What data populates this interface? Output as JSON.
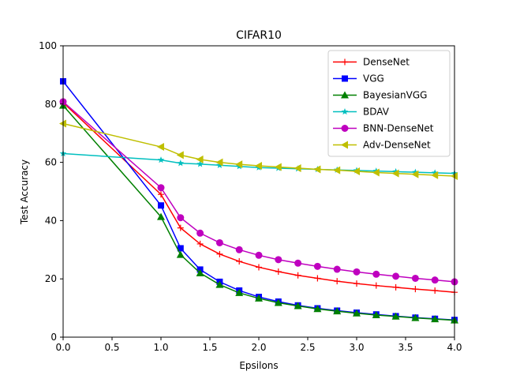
{
  "chart_data": {
    "type": "line",
    "title": "CIFAR10",
    "xlabel": "Epsilons",
    "ylabel": "Test Accuracy",
    "xlim": [
      0,
      4
    ],
    "ylim": [
      0,
      100
    ],
    "xticks": [
      "0.0",
      "0.5",
      "1.0",
      "1.5",
      "2.0",
      "2.5",
      "3.0",
      "3.5",
      "4.0"
    ],
    "yticks": [
      "0",
      "20",
      "40",
      "60",
      "80",
      "100"
    ],
    "grid": false,
    "legend_position": "top-right",
    "x": [
      0,
      1.0,
      1.2,
      1.4,
      1.6,
      1.8,
      2.0,
      2.2,
      2.4,
      2.6,
      2.8,
      3.0,
      3.2,
      3.4,
      3.6,
      3.8,
      4.0
    ],
    "series": [
      {
        "name": "DenseNet",
        "color": "#ff0000",
        "marker": "plus",
        "values": [
          80.5,
          49,
          37.5,
          32,
          28.5,
          26,
          24,
          22.5,
          21.2,
          20.2,
          19.2,
          18.4,
          17.7,
          17.1,
          16.5,
          16,
          15.4
        ]
      },
      {
        "name": "VGG",
        "color": "#0000ff",
        "marker": "square",
        "values": [
          87.8,
          45.2,
          30.5,
          23.2,
          19,
          16,
          13.8,
          12.2,
          10.9,
          9.9,
          9.1,
          8.4,
          7.8,
          7.2,
          6.7,
          6.3,
          5.9
        ]
      },
      {
        "name": "BayesianVGG",
        "color": "#008000",
        "marker": "triangle-up",
        "values": [
          79.5,
          41.3,
          28.3,
          22,
          18,
          15.2,
          13.3,
          11.8,
          10.7,
          9.7,
          8.9,
          8.2,
          7.6,
          7.1,
          6.6,
          6.2,
          5.8
        ]
      },
      {
        "name": " BDAV",
        "color": "#00bfbf",
        "marker": "star",
        "values": [
          63,
          60.8,
          59.7,
          59.4,
          59,
          58.6,
          58.2,
          58,
          57.8,
          57.6,
          57.4,
          57.2,
          57,
          56.8,
          56.6,
          56.4,
          56.2
        ]
      },
      {
        "name": "BNN-DenseNet",
        "color": "#bf00bf",
        "marker": "circle",
        "values": [
          80.8,
          51.3,
          41,
          35.7,
          32.4,
          30,
          28.1,
          26.6,
          25.4,
          24.3,
          23.3,
          22.4,
          21.6,
          20.9,
          20.2,
          19.6,
          19
        ]
      },
      {
        "name": "Adv-DenseNet",
        "color": "#bfbf00",
        "marker": "triangle-left",
        "values": [
          73.3,
          65.3,
          62.5,
          61,
          60,
          59.3,
          58.8,
          58.4,
          58,
          57.6,
          57.3,
          56.9,
          56.5,
          56.2,
          55.9,
          55.6,
          55.3
        ]
      }
    ]
  }
}
